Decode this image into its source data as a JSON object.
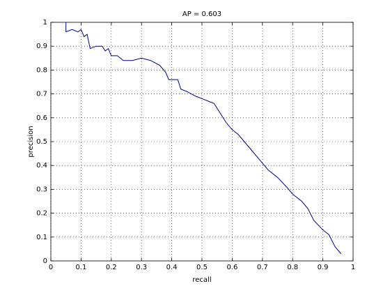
{
  "chart_data": {
    "type": "line",
    "title": "AP = 0.603",
    "x_label": "recall",
    "y_label": "precision",
    "x": [
      0.05,
      0.05,
      0.07,
      0.09,
      0.1,
      0.11,
      0.12,
      0.13,
      0.15,
      0.17,
      0.18,
      0.19,
      0.2,
      0.22,
      0.24,
      0.27,
      0.3,
      0.33,
      0.36,
      0.38,
      0.39,
      0.42,
      0.43,
      0.45,
      0.48,
      0.5,
      0.52,
      0.54,
      0.56,
      0.58,
      0.6,
      0.62,
      0.64,
      0.66,
      0.68,
      0.7,
      0.72,
      0.75,
      0.78,
      0.8,
      0.83,
      0.85,
      0.87,
      0.9,
      0.92,
      0.94,
      0.96
    ],
    "series": [
      {
        "color": "#00008b",
        "values": [
          1.0,
          0.96,
          0.97,
          0.96,
          0.97,
          0.94,
          0.95,
          0.89,
          0.9,
          0.9,
          0.88,
          0.89,
          0.86,
          0.86,
          0.84,
          0.84,
          0.85,
          0.84,
          0.82,
          0.79,
          0.76,
          0.76,
          0.72,
          0.71,
          0.69,
          0.68,
          0.67,
          0.66,
          0.62,
          0.58,
          0.55,
          0.53,
          0.5,
          0.47,
          0.44,
          0.41,
          0.38,
          0.35,
          0.31,
          0.28,
          0.25,
          0.22,
          0.17,
          0.13,
          0.11,
          0.06,
          0.03
        ]
      }
    ],
    "xlim": [
      0,
      1
    ],
    "ylim": [
      0,
      1
    ],
    "xticks": [
      0,
      0.1,
      0.2,
      0.3,
      0.4,
      0.5,
      0.6,
      0.7,
      0.8,
      0.9,
      1
    ],
    "yticks": [
      0,
      0.1,
      0.2,
      0.3,
      0.4,
      0.5,
      0.6,
      0.7,
      0.8,
      0.9,
      1
    ],
    "grid": true
  }
}
